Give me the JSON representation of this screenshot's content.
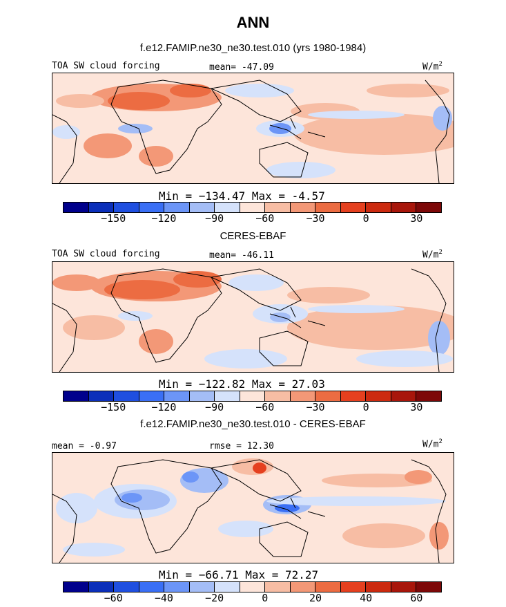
{
  "title": "ANN",
  "chart_data": [
    {
      "type": "heatmap",
      "title": "f.e12.FAMIP.ne30_ne30.test.010 (yrs 1980-1984)",
      "variable": "TOA SW cloud forcing",
      "units_prefix": "W/m",
      "units_exp": "2",
      "stat_text": "mean= -47.09",
      "minmax_text": "Min = −134.47 Max =  -4.57",
      "min": -134.47,
      "max": -4.57,
      "mean": -47.09,
      "colorbar": {
        "colors": [
          "#00008c",
          "#0b2fba",
          "#1f4fe0",
          "#3a6ff5",
          "#6c95f7",
          "#a4bdf6",
          "#d5e2fb",
          "#fde5da",
          "#f7bda4",
          "#f39877",
          "#ec6c42",
          "#e5401f",
          "#cc2a0f",
          "#a8160b",
          "#7d0808"
        ],
        "tick_labels": [
          "−150",
          "−120",
          "−90",
          "−60",
          "−30",
          "0",
          "30"
        ]
      }
    },
    {
      "type": "heatmap",
      "title": "CERES-EBAF",
      "variable": "TOA SW cloud forcing",
      "units_prefix": "W/m",
      "units_exp": "2",
      "stat_text": "mean= -46.11",
      "minmax_text": "Min = −122.82 Max =  27.03",
      "min": -122.82,
      "max": 27.03,
      "mean": -46.11,
      "colorbar": {
        "colors": [
          "#00008c",
          "#0b2fba",
          "#1f4fe0",
          "#3a6ff5",
          "#6c95f7",
          "#a4bdf6",
          "#d5e2fb",
          "#fde5da",
          "#f7bda4",
          "#f39877",
          "#ec6c42",
          "#e5401f",
          "#cc2a0f",
          "#a8160b",
          "#7d0808"
        ],
        "tick_labels": [
          "−150",
          "−120",
          "−90",
          "−60",
          "−30",
          "0",
          "30"
        ]
      }
    },
    {
      "type": "heatmap",
      "title": "f.e12.FAMIP.ne30_ne30.test.010 - CERES-EBAF",
      "variable": "",
      "units_prefix": "W/m",
      "units_exp": "2",
      "stat_text": "mean = -0.97",
      "rmse_text": "rmse = 12.30",
      "minmax_text": "Min = −66.71 Max =  72.27",
      "min": -66.71,
      "max": 72.27,
      "mean": -0.97,
      "rmse": 12.3,
      "colorbar": {
        "colors": [
          "#00008c",
          "#0b2fba",
          "#1f4fe0",
          "#3a6ff5",
          "#6c95f7",
          "#a4bdf6",
          "#d5e2fb",
          "#fde5da",
          "#f7bda4",
          "#f39877",
          "#ec6c42",
          "#e5401f",
          "#cc2a0f",
          "#a8160b",
          "#7d0808"
        ],
        "tick_labels": [
          "−60",
          "−40",
          "−20",
          "0",
          "20",
          "40",
          "60"
        ]
      }
    }
  ]
}
